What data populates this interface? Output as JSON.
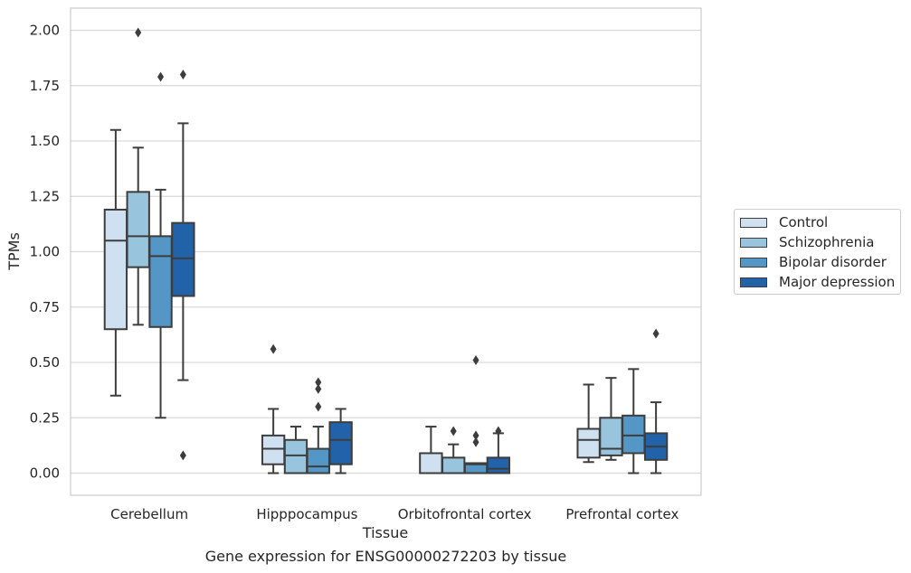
{
  "chart_data": {
    "type": "box",
    "ylabel": "TPMs",
    "xlabel": "Tissue",
    "caption": "Gene expression for ENSG00000272203 by tissue",
    "ylim": [
      -0.1,
      2.1
    ],
    "yticks": [
      "0.00",
      "0.25",
      "0.50",
      "0.75",
      "1.00",
      "1.25",
      "1.50",
      "1.75",
      "2.00"
    ],
    "categories": [
      "Cerebellum",
      "Hipppocampus",
      "Orbitofrontal cortex",
      "Prefrontal cortex"
    ],
    "legend_position": "right",
    "grid": "horizontal",
    "series": [
      {
        "name": "Control",
        "color": "#cfe0f1",
        "boxes": [
          {
            "whisker_low": 0.35,
            "q1": 0.65,
            "median": 1.05,
            "q3": 1.19,
            "whisker_high": 1.55,
            "outliers": []
          },
          {
            "whisker_low": 0.0,
            "q1": 0.04,
            "median": 0.11,
            "q3": 0.17,
            "whisker_high": 0.29,
            "outliers": [
              0.56
            ]
          },
          {
            "whisker_low": 0.0,
            "q1": 0.0,
            "median": 0.0,
            "q3": 0.09,
            "whisker_high": 0.21,
            "outliers": []
          },
          {
            "whisker_low": 0.05,
            "q1": 0.07,
            "median": 0.15,
            "q3": 0.2,
            "whisker_high": 0.4,
            "outliers": []
          }
        ]
      },
      {
        "name": "Schizophrenia",
        "color": "#98c4dd",
        "boxes": [
          {
            "whisker_low": 0.67,
            "q1": 0.93,
            "median": 1.07,
            "q3": 1.27,
            "whisker_high": 1.47,
            "outliers": [
              1.99
            ]
          },
          {
            "whisker_low": 0.0,
            "q1": 0.0,
            "median": 0.08,
            "q3": 0.15,
            "whisker_high": 0.21,
            "outliers": []
          },
          {
            "whisker_low": 0.0,
            "q1": 0.0,
            "median": 0.0,
            "q3": 0.07,
            "whisker_high": 0.13,
            "outliers": [
              0.19
            ]
          },
          {
            "whisker_low": 0.06,
            "q1": 0.08,
            "median": 0.11,
            "q3": 0.25,
            "whisker_high": 0.43,
            "outliers": []
          }
        ]
      },
      {
        "name": "Bipolar disorder",
        "color": "#5496c5",
        "boxes": [
          {
            "whisker_low": 0.25,
            "q1": 0.66,
            "median": 0.98,
            "q3": 1.07,
            "whisker_high": 1.28,
            "outliers": [
              1.79
            ]
          },
          {
            "whisker_low": 0.0,
            "q1": 0.0,
            "median": 0.03,
            "q3": 0.11,
            "whisker_high": 0.21,
            "outliers": [
              0.41,
              0.38,
              0.3
            ]
          },
          {
            "whisker_low": 0.0,
            "q1": 0.0,
            "median": 0.04,
            "q3": 0.045,
            "whisker_high": 0.045,
            "outliers": [
              0.17,
              0.14,
              0.51
            ]
          },
          {
            "whisker_low": 0.0,
            "q1": 0.09,
            "median": 0.17,
            "q3": 0.26,
            "whisker_high": 0.47,
            "outliers": []
          }
        ]
      },
      {
        "name": "Major depression",
        "color": "#2262a8",
        "boxes": [
          {
            "whisker_low": 0.42,
            "q1": 0.8,
            "median": 0.97,
            "q3": 1.13,
            "whisker_high": 1.58,
            "outliers": [
              1.8,
              0.08
            ]
          },
          {
            "whisker_low": 0.0,
            "q1": 0.04,
            "median": 0.15,
            "q3": 0.23,
            "whisker_high": 0.29,
            "outliers": []
          },
          {
            "whisker_low": 0.0,
            "q1": 0.0,
            "median": 0.02,
            "q3": 0.07,
            "whisker_high": 0.18,
            "outliers": [
              0.19
            ]
          },
          {
            "whisker_low": 0.0,
            "q1": 0.06,
            "median": 0.12,
            "q3": 0.18,
            "whisker_high": 0.32,
            "outliers": [
              0.63
            ]
          }
        ]
      }
    ]
  }
}
